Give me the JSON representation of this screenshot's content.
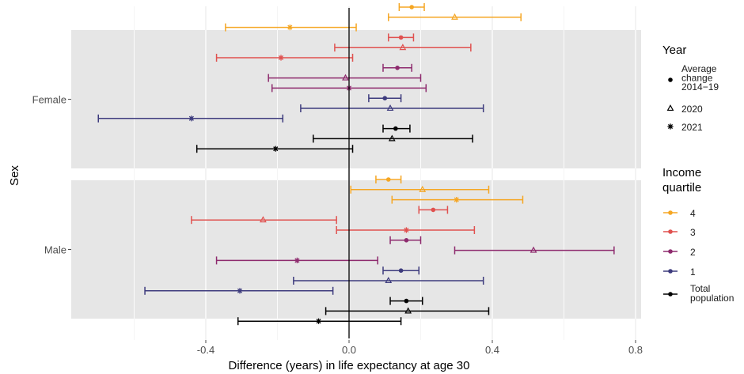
{
  "chart_data": {
    "type": "forest",
    "xlabel": "Difference (years) in life expectancy at age 30",
    "ylabel": "Sex",
    "xlim": [
      -0.62,
      0.82
    ],
    "x_ticks": [
      -0.4,
      0.0,
      0.4,
      0.8
    ],
    "x_tick_labels": [
      "-0.4",
      "0.0",
      "0.4",
      "0.8"
    ],
    "grid": true,
    "reference_line": 0,
    "colors": {
      "4": "#f5a623",
      "3": "#e0514f",
      "2": "#8e2b6e",
      "1": "#3d3b7d",
      "Total population": "#000000",
      "panel": "#e6e6e6",
      "gridline": "#ffffff"
    },
    "panels": [
      {
        "label": "Female",
        "rows": [
          {
            "quartile": "4",
            "year": "Average change 2014-19",
            "estimate": 0.175,
            "lower": 0.14,
            "upper": 0.21
          },
          {
            "quartile": "4",
            "year": "2020",
            "estimate": 0.295,
            "lower": 0.11,
            "upper": 0.48
          },
          {
            "quartile": "4",
            "year": "2021",
            "estimate": -0.165,
            "lower": -0.345,
            "upper": 0.02
          },
          {
            "quartile": "3",
            "year": "Average change 2014-19",
            "estimate": 0.145,
            "lower": 0.11,
            "upper": 0.18
          },
          {
            "quartile": "3",
            "year": "2020",
            "estimate": 0.15,
            "lower": -0.04,
            "upper": 0.34
          },
          {
            "quartile": "3",
            "year": "2021",
            "estimate": -0.19,
            "lower": -0.37,
            "upper": 0.01
          },
          {
            "quartile": "2",
            "year": "Average change 2014-19",
            "estimate": 0.135,
            "lower": 0.095,
            "upper": 0.175
          },
          {
            "quartile": "2",
            "year": "2020",
            "estimate": -0.01,
            "lower": -0.225,
            "upper": 0.2
          },
          {
            "quartile": "2",
            "year": "2021",
            "estimate": 0.0,
            "lower": -0.215,
            "upper": 0.215
          },
          {
            "quartile": "1",
            "year": "Average change 2014-19",
            "estimate": 0.1,
            "lower": 0.055,
            "upper": 0.145
          },
          {
            "quartile": "1",
            "year": "2020",
            "estimate": 0.115,
            "lower": -0.135,
            "upper": 0.375
          },
          {
            "quartile": "1",
            "year": "2021",
            "estimate": -0.44,
            "lower": -0.7,
            "upper": -0.185
          },
          {
            "quartile": "Total population",
            "year": "Average change 2014-19",
            "estimate": 0.13,
            "lower": 0.095,
            "upper": 0.17
          },
          {
            "quartile": "Total population",
            "year": "2020",
            "estimate": 0.12,
            "lower": -0.1,
            "upper": 0.345
          },
          {
            "quartile": "Total population",
            "year": "2021",
            "estimate": -0.205,
            "lower": -0.425,
            "upper": 0.01
          }
        ]
      },
      {
        "label": "Male",
        "rows": [
          {
            "quartile": "4",
            "year": "Average change 2014-19",
            "estimate": 0.11,
            "lower": 0.075,
            "upper": 0.145
          },
          {
            "quartile": "4",
            "year": "2020",
            "estimate": 0.205,
            "lower": 0.005,
            "upper": 0.39
          },
          {
            "quartile": "4",
            "year": "2021",
            "estimate": 0.3,
            "lower": 0.12,
            "upper": 0.485
          },
          {
            "quartile": "3",
            "year": "Average change 2014-19",
            "estimate": 0.235,
            "lower": 0.195,
            "upper": 0.275
          },
          {
            "quartile": "3",
            "year": "2020",
            "estimate": -0.24,
            "lower": -0.44,
            "upper": -0.035
          },
          {
            "quartile": "3",
            "year": "2021",
            "estimate": 0.16,
            "lower": -0.035,
            "upper": 0.35
          },
          {
            "quartile": "2",
            "year": "Average change 2014-19",
            "estimate": 0.16,
            "lower": 0.115,
            "upper": 0.2
          },
          {
            "quartile": "2",
            "year": "2020",
            "estimate": 0.515,
            "lower": 0.295,
            "upper": 0.74
          },
          {
            "quartile": "2",
            "year": "2021",
            "estimate": -0.145,
            "lower": -0.37,
            "upper": 0.08
          },
          {
            "quartile": "1",
            "year": "Average change 2014-19",
            "estimate": 0.145,
            "lower": 0.095,
            "upper": 0.195
          },
          {
            "quartile": "1",
            "year": "2020",
            "estimate": 0.11,
            "lower": -0.155,
            "upper": 0.375
          },
          {
            "quartile": "1",
            "year": "2021",
            "estimate": -0.305,
            "lower": -0.57,
            "upper": -0.045
          },
          {
            "quartile": "Total population",
            "year": "Average change 2014-19",
            "estimate": 0.16,
            "lower": 0.115,
            "upper": 0.205
          },
          {
            "quartile": "Total population",
            "year": "2020",
            "estimate": 0.165,
            "lower": -0.065,
            "upper": 0.39
          },
          {
            "quartile": "Total population",
            "year": "2021",
            "estimate": -0.085,
            "lower": -0.31,
            "upper": 0.145
          }
        ]
      }
    ],
    "legend": {
      "position": "right",
      "year_title": "Year",
      "year_items": [
        {
          "label_lines": [
            "Average",
            "change",
            "2014−19"
          ],
          "shape": "circle"
        },
        {
          "label_lines": [
            "2020"
          ],
          "shape": "triangle"
        },
        {
          "label_lines": [
            "2021"
          ],
          "shape": "asterisk"
        }
      ],
      "quartile_title_lines": [
        "Income",
        "quartile"
      ],
      "quartile_items": [
        {
          "key": "4",
          "label_lines": [
            "4"
          ]
        },
        {
          "key": "3",
          "label_lines": [
            "3"
          ]
        },
        {
          "key": "2",
          "label_lines": [
            "2"
          ]
        },
        {
          "key": "1",
          "label_lines": [
            "1"
          ]
        },
        {
          "key": "Total population",
          "label_lines": [
            "Total",
            "population"
          ]
        }
      ]
    }
  }
}
